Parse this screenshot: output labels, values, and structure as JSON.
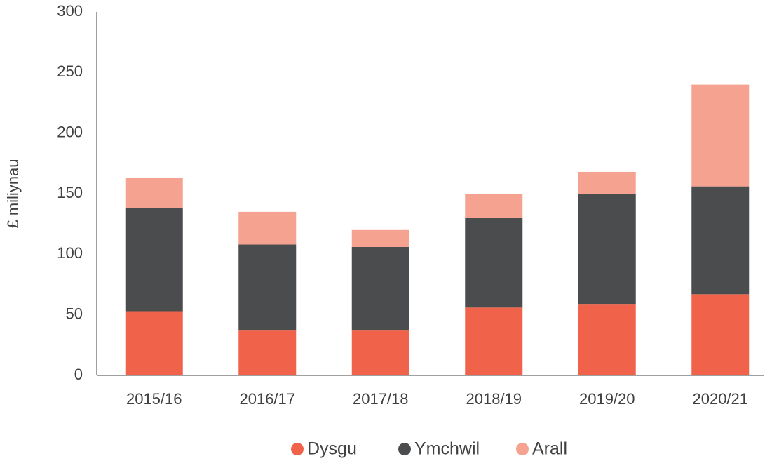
{
  "chart_data": {
    "type": "stacked_bar",
    "ylabel": "£ miliynau",
    "categories": [
      "2015/16",
      "2016/17",
      "2017/18",
      "2018/19",
      "2019/20",
      "2020/21"
    ],
    "series": [
      {
        "name": "Dysgu",
        "color": "#f0634a",
        "values": [
          53,
          37,
          37,
          56,
          59,
          67
        ]
      },
      {
        "name": "Ymchwil",
        "color": "#4a4c4e",
        "values": [
          85,
          71,
          69,
          74,
          91,
          89
        ]
      },
      {
        "name": "Arall",
        "color": "#f5a290",
        "values": [
          25,
          27,
          14,
          20,
          18,
          84
        ]
      }
    ],
    "ylim": [
      0,
      300
    ],
    "yticks": [
      0,
      50,
      100,
      150,
      200,
      250,
      300
    ],
    "legend": "bottom"
  }
}
